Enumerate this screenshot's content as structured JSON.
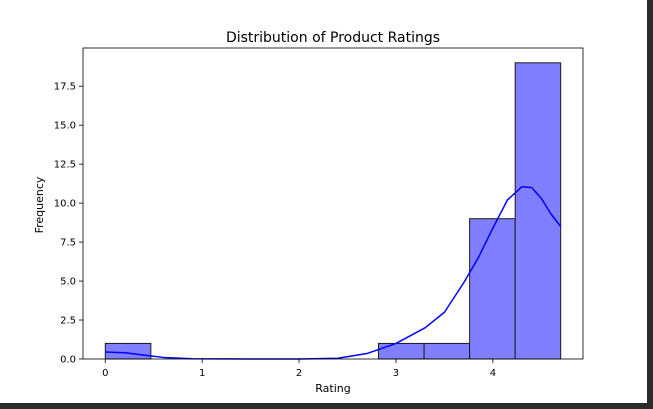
{
  "chart_data": {
    "type": "bar",
    "subtype": "histogram with kde",
    "title": "Distribution of Product Ratings",
    "xlabel": "Rating",
    "ylabel": "Frequency",
    "xlim": [
      -0.23,
      4.93
    ],
    "ylim": [
      0,
      19.95
    ],
    "x_ticks": [
      0,
      1,
      2,
      3,
      4
    ],
    "x_tick_labels": [
      "0",
      "1",
      "2",
      "3",
      "4"
    ],
    "y_ticks": [
      0,
      2.5,
      5,
      7.5,
      10,
      12.5,
      15,
      17.5
    ],
    "y_tick_labels": [
      "0.0",
      "2.5",
      "5.0",
      "7.5",
      "10.0",
      "12.5",
      "15.0",
      "17.5"
    ],
    "grid": false,
    "legend": false,
    "bar_color": "#7f7fff",
    "bar_edge_color": "#1a1a1a",
    "line_color": "#0000ff",
    "bins": [
      {
        "x0": 0.0,
        "x1": 0.47,
        "count": 1
      },
      {
        "x0": 0.47,
        "x1": 0.94,
        "count": 0
      },
      {
        "x0": 0.94,
        "x1": 1.41,
        "count": 0
      },
      {
        "x0": 1.41,
        "x1": 1.88,
        "count": 0
      },
      {
        "x0": 1.88,
        "x1": 2.35,
        "count": 0
      },
      {
        "x0": 2.35,
        "x1": 2.82,
        "count": 0
      },
      {
        "x0": 2.82,
        "x1": 3.29,
        "count": 1
      },
      {
        "x0": 3.29,
        "x1": 3.76,
        "count": 1
      },
      {
        "x0": 3.76,
        "x1": 4.23,
        "count": 9
      },
      {
        "x0": 4.23,
        "x1": 4.7,
        "count": 19
      }
    ],
    "kde": {
      "x": [
        0.0,
        0.2,
        0.4,
        0.6,
        0.9,
        1.5,
        2.0,
        2.4,
        2.7,
        3.0,
        3.3,
        3.5,
        3.7,
        3.85,
        4.0,
        4.15,
        4.3,
        4.4,
        4.5,
        4.6,
        4.7
      ],
      "y": [
        0.45,
        0.4,
        0.25,
        0.1,
        0.02,
        0.0,
        0.0,
        0.05,
        0.35,
        1.0,
        2.0,
        3.0,
        4.9,
        6.5,
        8.4,
        10.2,
        11.05,
        11.0,
        10.3,
        9.3,
        8.5
      ]
    }
  }
}
